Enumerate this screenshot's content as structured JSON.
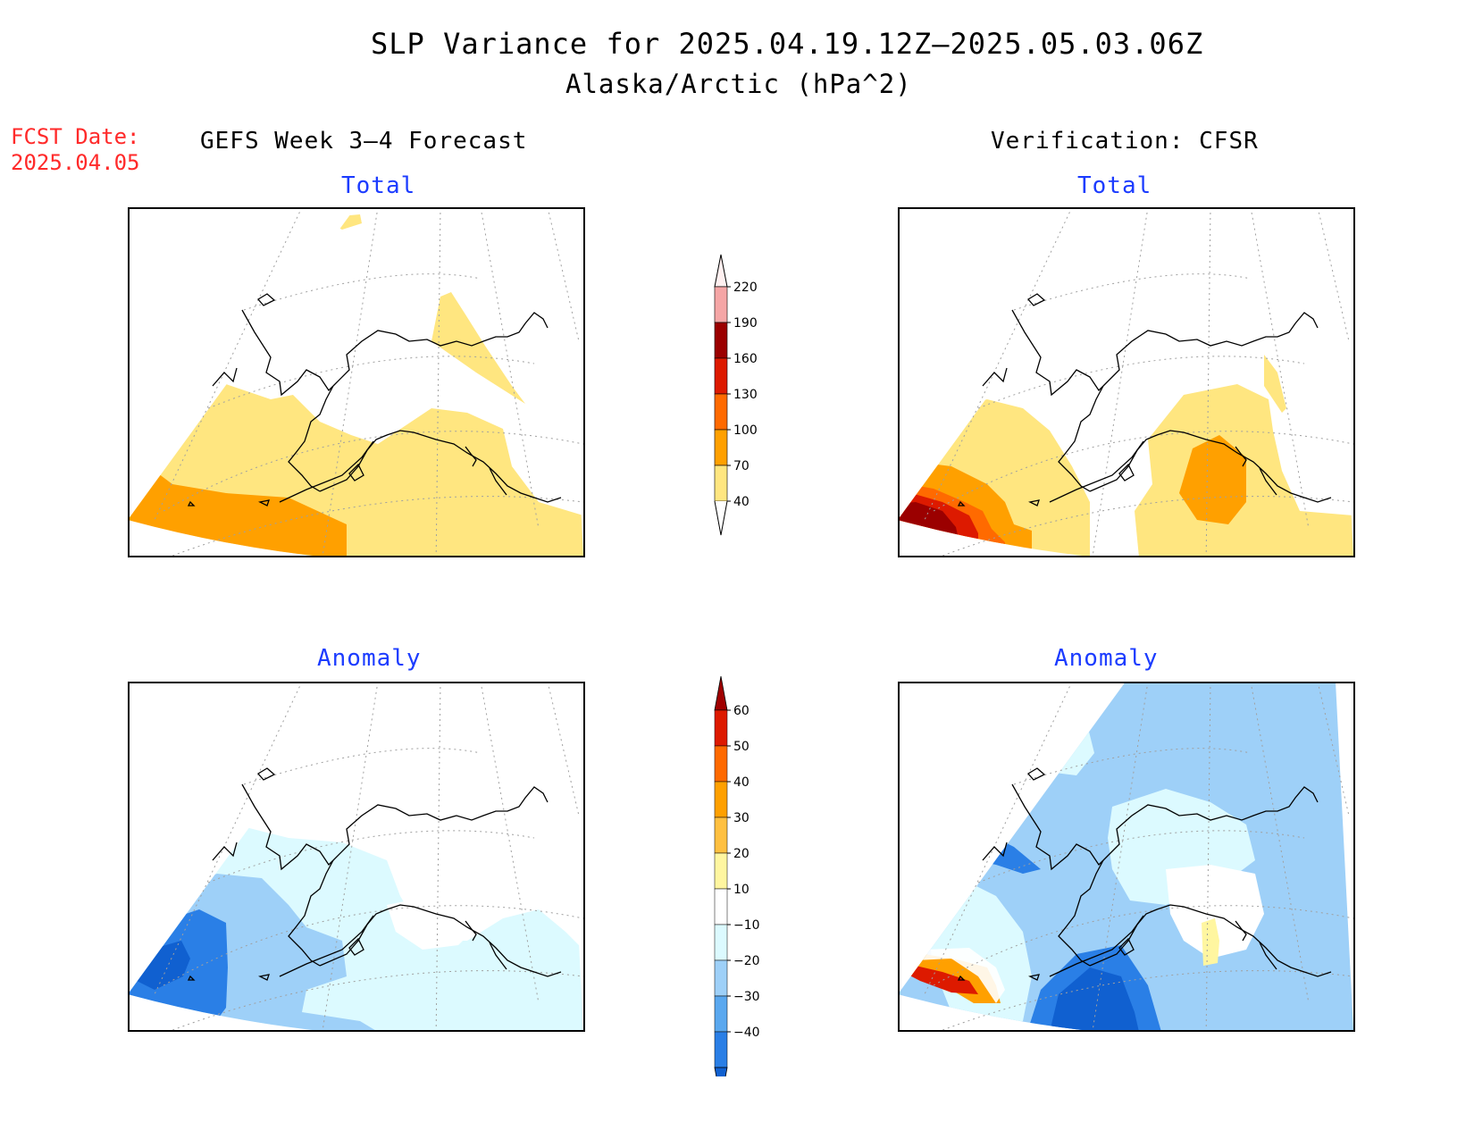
{
  "title": "SLP Variance for 2025.04.19.12Z–2025.05.03.06Z",
  "subtitle": "Alaska/Arctic (hPa^2)",
  "fcst_date": {
    "label": "FCST Date:",
    "value": "2025.04.05"
  },
  "left_column": {
    "heading": "GEFS Week 3–4 Forecast"
  },
  "right_column": {
    "heading": "Verification: CFSR"
  },
  "panels": {
    "forecast_total": {
      "title": "Total"
    },
    "forecast_anomaly": {
      "title": "Anomaly"
    },
    "verification_total": {
      "title": "Total"
    },
    "verification_anomaly": {
      "title": "Anomaly"
    }
  },
  "colorbars": {
    "total": {
      "ticks": [
        "220",
        "190",
        "160",
        "130",
        "100",
        "70",
        "40"
      ],
      "colors": [
        "#fff0f0",
        "#f5a6a6",
        "#9b0000",
        "#dd1a00",
        "#ff6a00",
        "#ffa000",
        "#ffe680"
      ]
    },
    "anomaly": {
      "ticks": [
        "60",
        "50",
        "40",
        "30",
        "20",
        "10",
        "−10",
        "−20",
        "−30",
        "−40"
      ],
      "colors": [
        "#a00000",
        "#dd1a00",
        "#ff6a00",
        "#ffa000",
        "#ffc040",
        "#fff6a0",
        "#ffffff",
        "#dcfaff",
        "#9ed0f8",
        "#5aa8ef",
        "#2a7fe6",
        "#1060d0"
      ]
    }
  },
  "fill_colors": {
    "yellow": "#ffe680",
    "orange": "#ffa000",
    "dark_orange": "#ff6a00",
    "red": "#dd1a00",
    "dark_red": "#9b0000",
    "cyan_light": "#dcfaff",
    "blue_light": "#9ed0f8",
    "blue_mid": "#5aa8ef",
    "blue": "#2a7fe6",
    "blue_dark": "#1060d0"
  }
}
